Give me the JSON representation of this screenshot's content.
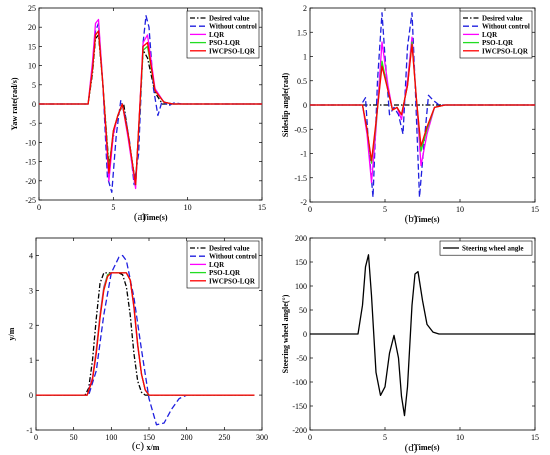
{
  "captions": [
    "(a)",
    "(b)",
    "(c)",
    "(d)"
  ],
  "chart_data": [
    {
      "type": "line",
      "caption": "(a)",
      "xlabel": "Time(s)",
      "ylabel": "Yaw rate(rad/s)",
      "xlim": [
        0,
        15
      ],
      "ylim": [
        -25,
        25
      ],
      "xticks": [
        0,
        5,
        10,
        15
      ],
      "yticks": [
        -25,
        -20,
        -15,
        -10,
        -5,
        0,
        5,
        10,
        15,
        20,
        25
      ],
      "legend": "top-right",
      "series": [
        {
          "name": "Desired value",
          "color": "#000000",
          "style": "dashdot",
          "x": [
            0,
            3.3,
            3.6,
            3.8,
            4.0,
            4.3,
            4.7,
            5.1,
            5.4,
            5.7,
            6.0,
            6.5,
            7.0,
            7.3,
            7.8,
            8.3,
            15
          ],
          "y": [
            0,
            0,
            8,
            17,
            18,
            5,
            -16,
            -6,
            -2,
            0,
            -8,
            -21,
            14,
            12,
            3,
            0,
            0
          ]
        },
        {
          "name": "Without control",
          "color": "#1f1fdf",
          "style": "dashed",
          "x": [
            0,
            3.3,
            3.6,
            3.8,
            4.0,
            4.3,
            4.6,
            4.9,
            5.2,
            5.5,
            5.8,
            6.1,
            6.4,
            6.7,
            7.0,
            7.2,
            7.4,
            7.7,
            8.0,
            8.3,
            8.7,
            9.1,
            9.6,
            15
          ],
          "y": [
            0,
            0,
            9,
            19,
            21,
            5,
            -19,
            -23,
            -8,
            1,
            -3,
            -10,
            -21,
            -13,
            16,
            23,
            20,
            4,
            -3,
            1,
            -0.5,
            0.3,
            0,
            0
          ]
        },
        {
          "name": "LQR",
          "color": "#ff00ff",
          "style": "solid",
          "x": [
            0,
            3.3,
            3.6,
            3.8,
            4.0,
            4.3,
            4.7,
            5.0,
            5.3,
            5.6,
            6.0,
            6.5,
            7.0,
            7.3,
            7.8,
            8.4,
            9.0,
            15
          ],
          "y": [
            0,
            0,
            11,
            21,
            22,
            5,
            -20,
            -8,
            -3,
            0,
            -9,
            -22,
            16,
            18,
            4,
            0.5,
            0,
            0
          ]
        },
        {
          "name": "PSO-LQR",
          "color": "#22dd22",
          "style": "solid",
          "x": [
            0,
            3.3,
            3.6,
            3.8,
            4.0,
            4.3,
            4.7,
            5.0,
            5.3,
            5.6,
            6.0,
            6.5,
            7.0,
            7.3,
            7.8,
            8.4,
            9.0,
            15
          ],
          "y": [
            0,
            0,
            9,
            18,
            19,
            5,
            -17,
            -7,
            -3,
            0,
            -8,
            -21,
            14,
            15,
            3.5,
            0.5,
            0,
            0
          ]
        },
        {
          "name": "IWCPSO-LQR",
          "color": "#ff0000",
          "style": "solid",
          "x": [
            0,
            3.3,
            3.6,
            3.8,
            4.0,
            4.3,
            4.7,
            5.0,
            5.3,
            5.6,
            6.0,
            6.5,
            7.0,
            7.3,
            7.8,
            8.4,
            9.0,
            15
          ],
          "y": [
            0,
            0,
            9,
            18,
            19,
            5,
            -18,
            -7,
            -3,
            0,
            -8,
            -21,
            15,
            16,
            3.5,
            0.5,
            0,
            0
          ]
        }
      ]
    },
    {
      "type": "line",
      "caption": "(b)",
      "xlabel": "Time(s)",
      "ylabel": "Sideslip angle(rad)",
      "xlim": [
        0,
        15
      ],
      "ylim": [
        -2,
        2
      ],
      "xticks": [
        0,
        5,
        10,
        15
      ],
      "yticks": [
        -2,
        -1.5,
        -1,
        -0.5,
        0,
        0.5,
        1,
        1.5,
        2
      ],
      "legend": "top-right",
      "series": [
        {
          "name": "Desired value",
          "color": "#000000",
          "style": "dashdot",
          "x": [
            0,
            15
          ],
          "y": [
            0,
            0
          ]
        },
        {
          "name": "Without control",
          "color": "#1f1fdf",
          "style": "dashed",
          "x": [
            0,
            3.4,
            3.7,
            3.9,
            4.2,
            4.5,
            4.8,
            5.0,
            5.3,
            5.6,
            5.9,
            6.2,
            6.5,
            6.8,
            7.0,
            7.3,
            7.6,
            7.9,
            8.2,
            8.6,
            9.0,
            15
          ],
          "y": [
            0,
            0,
            0.15,
            -0.8,
            -1.9,
            0.5,
            1.9,
            1.0,
            -0.2,
            -0.05,
            -0.2,
            -0.6,
            1.2,
            1.9,
            0.5,
            -1.9,
            -0.8,
            0.2,
            0.1,
            0,
            0,
            0
          ]
        },
        {
          "name": "LQR",
          "color": "#ff00ff",
          "style": "solid",
          "x": [
            0,
            3.5,
            3.8,
            4.1,
            4.4,
            4.8,
            5.2,
            5.5,
            5.8,
            6.1,
            6.5,
            6.8,
            7.1,
            7.4,
            7.8,
            8.3,
            9.0,
            15
          ],
          "y": [
            0,
            0,
            -0.6,
            -1.6,
            -0.5,
            1.3,
            0.4,
            -0.1,
            -0.05,
            -0.3,
            0.5,
            1.4,
            0.1,
            -1.25,
            -0.6,
            -0.05,
            0,
            0
          ]
        },
        {
          "name": "PSO-LQR",
          "color": "#22dd22",
          "style": "solid",
          "x": [
            0,
            3.5,
            3.8,
            4.1,
            4.4,
            4.8,
            5.2,
            5.5,
            5.8,
            6.1,
            6.5,
            6.8,
            7.1,
            7.4,
            7.8,
            8.3,
            9.0,
            15
          ],
          "y": [
            0,
            0,
            -0.5,
            -1.2,
            -0.4,
            0.9,
            0.3,
            -0.1,
            -0.05,
            -0.2,
            0.4,
            1.3,
            0.1,
            -0.95,
            -0.5,
            -0.05,
            0,
            0
          ]
        },
        {
          "name": "IWCPSO-LQR",
          "color": "#ff0000",
          "style": "solid",
          "x": [
            0,
            3.5,
            3.8,
            4.1,
            4.4,
            4.8,
            5.2,
            5.5,
            5.8,
            6.1,
            6.5,
            6.8,
            7.1,
            7.4,
            7.8,
            8.3,
            9.0,
            15
          ],
          "y": [
            0,
            0,
            -0.5,
            -1.15,
            -0.35,
            0.8,
            0.3,
            -0.1,
            -0.05,
            -0.2,
            0.4,
            1.25,
            0.1,
            -0.85,
            -0.45,
            -0.05,
            0,
            0
          ]
        }
      ]
    },
    {
      "type": "line",
      "caption": "(c)",
      "xlabel": "x/m",
      "ylabel": "y/m",
      "xlim": [
        0,
        300
      ],
      "ylim": [
        -1,
        4.5
      ],
      "xticks": [
        0,
        50,
        100,
        150,
        200,
        250,
        300
      ],
      "yticks": [
        -1,
        0,
        1,
        2,
        3,
        4
      ],
      "legend": "top-right",
      "series": [
        {
          "name": "Desired value",
          "color": "#000000",
          "style": "dashdot",
          "x": [
            0,
            65,
            70,
            75,
            80,
            85,
            90,
            100,
            110,
            115,
            120,
            125,
            130,
            135,
            140,
            145,
            150,
            290
          ],
          "y": [
            0,
            0,
            0.2,
            1.0,
            2.2,
            3.2,
            3.5,
            3.5,
            3.5,
            3.45,
            3.1,
            2.3,
            1.2,
            0.4,
            0.08,
            0,
            0,
            0
          ]
        },
        {
          "name": "Without control",
          "color": "#1f1fdf",
          "style": "dashed",
          "x": [
            0,
            70,
            80,
            90,
            100,
            110,
            115,
            120,
            130,
            140,
            150,
            160,
            170,
            180,
            190,
            200
          ],
          "y": [
            0,
            0,
            0.7,
            2.3,
            3.5,
            3.95,
            4.0,
            3.85,
            2.8,
            1.3,
            -0.1,
            -0.85,
            -0.8,
            -0.4,
            -0.1,
            0
          ]
        },
        {
          "name": "LQR",
          "color": "#ff00ff",
          "style": "solid",
          "x": [
            0,
            68,
            75,
            80,
            85,
            90,
            95,
            100,
            120,
            125,
            130,
            135,
            140,
            145,
            150,
            290
          ],
          "y": [
            0,
            0,
            0.5,
            1.3,
            2.3,
            3.1,
            3.45,
            3.5,
            3.5,
            3.3,
            2.5,
            1.4,
            0.6,
            0.15,
            0,
            0
          ]
        },
        {
          "name": "PSO-LQR",
          "color": "#22dd22",
          "style": "solid",
          "x": [
            0,
            68,
            75,
            80,
            85,
            90,
            95,
            100,
            120,
            125,
            130,
            135,
            140,
            145,
            150,
            290
          ],
          "y": [
            0,
            0,
            0.45,
            1.25,
            2.25,
            3.05,
            3.45,
            3.5,
            3.5,
            3.3,
            2.55,
            1.45,
            0.6,
            0.15,
            0,
            0
          ]
        },
        {
          "name": "IWCPSO-LQR",
          "color": "#ff0000",
          "style": "solid",
          "x": [
            0,
            68,
            75,
            80,
            85,
            90,
            95,
            100,
            120,
            125,
            130,
            135,
            140,
            145,
            150,
            290
          ],
          "y": [
            0,
            0,
            0.45,
            1.2,
            2.2,
            3.0,
            3.4,
            3.5,
            3.5,
            3.3,
            2.55,
            1.45,
            0.6,
            0.15,
            0,
            0
          ]
        }
      ]
    },
    {
      "type": "line",
      "caption": "(d)",
      "xlabel": "Time(s)",
      "ylabel": "Steering wheel angle(°)",
      "xlim": [
        0,
        15
      ],
      "ylim": [
        -200,
        200
      ],
      "xticks": [
        0,
        5,
        10,
        15
      ],
      "yticks": [
        -200,
        -150,
        -100,
        -50,
        0,
        50,
        100,
        150,
        200
      ],
      "legend": "top-right",
      "series": [
        {
          "name": "Steering wheel angle",
          "color": "#000000",
          "style": "solid",
          "x": [
            0,
            3.2,
            3.5,
            3.7,
            3.9,
            4.1,
            4.4,
            4.7,
            5.0,
            5.3,
            5.6,
            5.9,
            6.1,
            6.3,
            6.5,
            6.8,
            7.0,
            7.2,
            7.5,
            7.8,
            8.2,
            8.6,
            9.0,
            15
          ],
          "y": [
            0,
            0,
            60,
            140,
            165,
            80,
            -80,
            -128,
            -110,
            -40,
            -3,
            -50,
            -130,
            -170,
            -110,
            60,
            125,
            130,
            70,
            20,
            4,
            0,
            0,
            0
          ]
        }
      ]
    }
  ]
}
